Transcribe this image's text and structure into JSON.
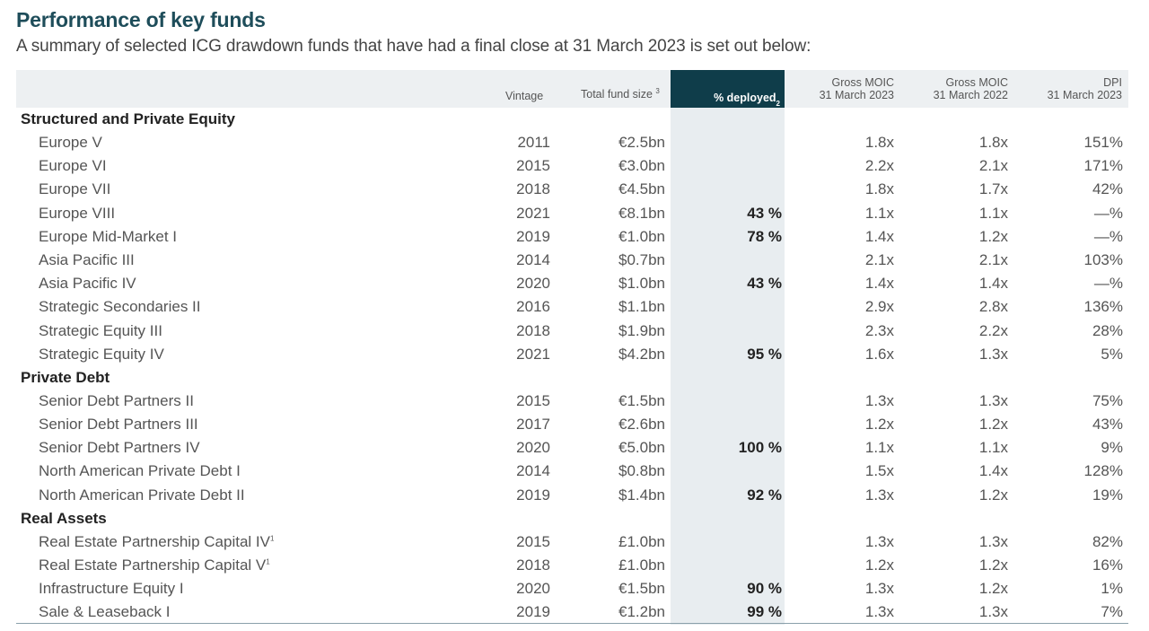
{
  "title": "Performance of key funds",
  "subtitle": "A summary of selected ICG drawdown funds that have had a final close at 31 March 2023 is set out below:",
  "headers": {
    "vintage": "Vintage",
    "fund_size": "Total fund size",
    "fund_size_note": "3",
    "deployed": "% deployed",
    "deployed_note": "2",
    "gross23_l1": "Gross MOIC",
    "gross23_l2": "31 March 2023",
    "gross22_l1": "Gross MOIC",
    "gross22_l2": "31 March 2022",
    "dpi_l1": "DPI",
    "dpi_l2": "31 March 2023"
  },
  "sections": [
    {
      "name": "Structured and Private Equity",
      "rows": [
        {
          "name": "Europe V",
          "note": "",
          "vintage": "2011",
          "size": "€2.5bn",
          "deployed": "",
          "g23": "1.8x",
          "g22": "1.8x",
          "dpi": "151%"
        },
        {
          "name": "Europe VI",
          "note": "",
          "vintage": "2015",
          "size": "€3.0bn",
          "deployed": "",
          "g23": "2.2x",
          "g22": "2.1x",
          "dpi": "171%"
        },
        {
          "name": "Europe VII",
          "note": "",
          "vintage": "2018",
          "size": "€4.5bn",
          "deployed": "",
          "g23": "1.8x",
          "g22": "1.7x",
          "dpi": "42%"
        },
        {
          "name": "Europe VIII",
          "note": "",
          "vintage": "2021",
          "size": "€8.1bn",
          "deployed": "43 %",
          "g23": "1.1x",
          "g22": "1.1x",
          "dpi": "—%"
        },
        {
          "name": "Europe Mid-Market I",
          "note": "",
          "vintage": "2019",
          "size": "€1.0bn",
          "deployed": "78 %",
          "g23": "1.4x",
          "g22": "1.2x",
          "dpi": "—%"
        },
        {
          "name": "Asia Pacific III",
          "note": "",
          "vintage": "2014",
          "size": "$0.7bn",
          "deployed": "",
          "g23": "2.1x",
          "g22": "2.1x",
          "dpi": "103%"
        },
        {
          "name": "Asia Pacific IV",
          "note": "",
          "vintage": "2020",
          "size": "$1.0bn",
          "deployed": "43 %",
          "g23": "1.4x",
          "g22": "1.4x",
          "dpi": "—%"
        },
        {
          "name": "Strategic Secondaries II",
          "note": "",
          "vintage": "2016",
          "size": "$1.1bn",
          "deployed": "",
          "g23": "2.9x",
          "g22": "2.8x",
          "dpi": "136%"
        },
        {
          "name": "Strategic Equity III",
          "note": "",
          "vintage": "2018",
          "size": "$1.9bn",
          "deployed": "",
          "g23": "2.3x",
          "g22": "2.2x",
          "dpi": "28%"
        },
        {
          "name": "Strategic Equity IV",
          "note": "",
          "vintage": "2021",
          "size": "$4.2bn",
          "deployed": "95 %",
          "g23": "1.6x",
          "g22": "1.3x",
          "dpi": "5%"
        }
      ]
    },
    {
      "name": "Private Debt",
      "rows": [
        {
          "name": "Senior Debt Partners II",
          "note": "",
          "vintage": "2015",
          "size": "€1.5bn",
          "deployed": "",
          "g23": "1.3x",
          "g22": "1.3x",
          "dpi": "75%"
        },
        {
          "name": "Senior Debt Partners III",
          "note": "",
          "vintage": "2017",
          "size": "€2.6bn",
          "deployed": "",
          "g23": "1.2x",
          "g22": "1.2x",
          "dpi": "43%"
        },
        {
          "name": "Senior Debt Partners IV",
          "note": "",
          "vintage": "2020",
          "size": "€5.0bn",
          "deployed": "100 %",
          "g23": "1.1x",
          "g22": "1.1x",
          "dpi": "9%"
        },
        {
          "name": "North American Private Debt I",
          "note": "",
          "vintage": "2014",
          "size": "$0.8bn",
          "deployed": "",
          "g23": "1.5x",
          "g22": "1.4x",
          "dpi": "128%"
        },
        {
          "name": "North American Private Debt II",
          "note": "",
          "vintage": "2019",
          "size": "$1.4bn",
          "deployed": "92 %",
          "g23": "1.3x",
          "g22": "1.2x",
          "dpi": "19%"
        }
      ]
    },
    {
      "name": "Real Assets",
      "rows": [
        {
          "name": "Real Estate Partnership Capital IV",
          "note": "1",
          "vintage": "2015",
          "size": "£1.0bn",
          "deployed": "",
          "g23": "1.3x",
          "g22": "1.3x",
          "dpi": "82%"
        },
        {
          "name": "Real Estate Partnership Capital V",
          "note": "1",
          "vintage": "2018",
          "size": "£1.0bn",
          "deployed": "",
          "g23": "1.2x",
          "g22": "1.2x",
          "dpi": "16%"
        },
        {
          "name": "Infrastructure Equity I",
          "note": "",
          "vintage": "2020",
          "size": "€1.5bn",
          "deployed": "90 %",
          "g23": "1.3x",
          "g22": "1.2x",
          "dpi": "1%"
        },
        {
          "name": "Sale & Leaseback I",
          "note": "",
          "vintage": "2019",
          "size": "€1.2bn",
          "deployed": "99 %",
          "g23": "1.3x",
          "g22": "1.3x",
          "dpi": "7%"
        }
      ]
    }
  ]
}
